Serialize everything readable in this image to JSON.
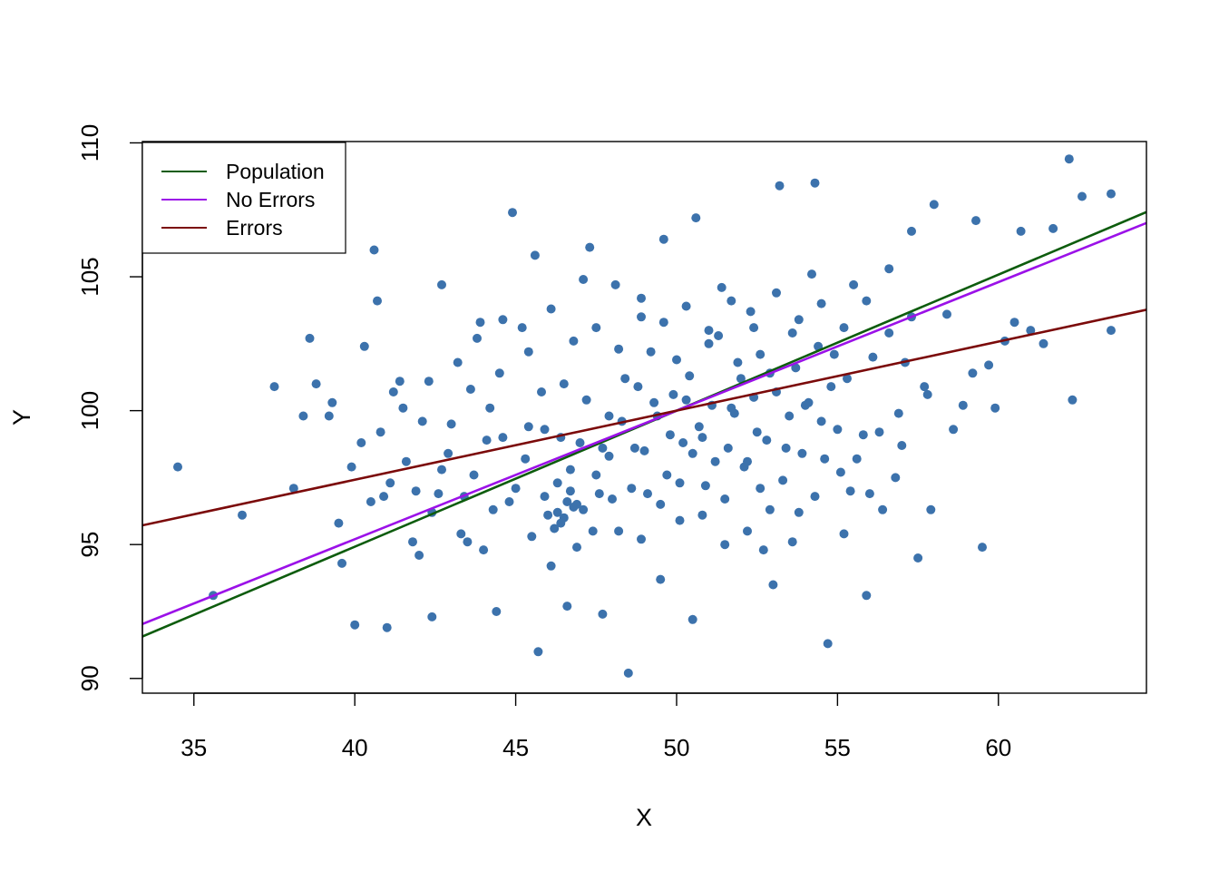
{
  "chart_data": {
    "type": "scatter",
    "xlabel": "X",
    "ylabel": "Y",
    "xlim": [
      33.4,
      64.6
    ],
    "ylim": [
      89.45,
      110.05
    ],
    "xticks": [
      35,
      40,
      45,
      50,
      55,
      60
    ],
    "yticks": [
      90,
      95,
      100,
      105,
      110
    ],
    "grid": false,
    "legend_position": "top-left",
    "point_color": "#3c72ac",
    "points": [
      [
        34.5,
        97.9
      ],
      [
        35.6,
        93.1
      ],
      [
        36.5,
        96.1
      ],
      [
        37.5,
        100.9
      ],
      [
        38.1,
        97.1
      ],
      [
        38.4,
        99.8
      ],
      [
        38.6,
        102.7
      ],
      [
        38.8,
        101.0
      ],
      [
        39.2,
        99.8
      ],
      [
        39.3,
        100.3
      ],
      [
        39.5,
        95.8
      ],
      [
        39.6,
        94.3
      ],
      [
        39.9,
        97.9
      ],
      [
        40.0,
        92.0
      ],
      [
        40.2,
        98.8
      ],
      [
        40.3,
        102.4
      ],
      [
        40.5,
        96.6
      ],
      [
        40.6,
        106.0
      ],
      [
        40.7,
        104.1
      ],
      [
        40.9,
        96.8
      ],
      [
        41.0,
        91.9
      ],
      [
        41.2,
        100.7
      ],
      [
        41.4,
        101.1
      ],
      [
        41.8,
        95.1
      ],
      [
        42.0,
        94.6
      ],
      [
        42.3,
        101.1
      ],
      [
        42.4,
        92.3
      ],
      [
        42.6,
        96.9
      ],
      [
        42.7,
        104.7
      ],
      [
        43.0,
        99.5
      ],
      [
        43.3,
        95.4
      ],
      [
        43.6,
        100.8
      ],
      [
        43.9,
        103.3
      ],
      [
        44.0,
        94.8
      ],
      [
        44.2,
        100.1
      ],
      [
        44.4,
        92.5
      ],
      [
        44.6,
        99.0
      ],
      [
        44.9,
        107.4
      ],
      [
        45.0,
        97.1
      ],
      [
        45.2,
        103.1
      ],
      [
        45.4,
        99.4
      ],
      [
        45.6,
        105.8
      ],
      [
        45.7,
        91.0
      ],
      [
        45.9,
        99.3
      ],
      [
        46.1,
        94.2
      ],
      [
        46.3,
        97.3
      ],
      [
        46.5,
        101.0
      ],
      [
        46.6,
        92.7
      ],
      [
        46.8,
        96.4
      ],
      [
        47.0,
        98.8
      ],
      [
        47.1,
        104.9
      ],
      [
        47.3,
        106.1
      ],
      [
        47.5,
        97.6
      ],
      [
        47.7,
        92.4
      ],
      [
        47.9,
        99.8
      ],
      [
        48.1,
        104.7
      ],
      [
        48.2,
        95.5
      ],
      [
        48.4,
        101.2
      ],
      [
        48.5,
        90.2
      ],
      [
        48.7,
        98.6
      ],
      [
        48.9,
        103.5
      ],
      [
        49.1,
        96.9
      ],
      [
        49.3,
        100.3
      ],
      [
        49.5,
        93.7
      ],
      [
        49.6,
        106.4
      ],
      [
        49.8,
        99.1
      ],
      [
        50.0,
        101.9
      ],
      [
        50.1,
        97.3
      ],
      [
        50.3,
        100.4
      ],
      [
        50.5,
        92.2
      ],
      [
        50.6,
        107.2
      ],
      [
        50.8,
        99.0
      ],
      [
        51.0,
        102.5
      ],
      [
        51.2,
        98.1
      ],
      [
        51.4,
        104.6
      ],
      [
        51.5,
        95.0
      ],
      [
        51.7,
        100.1
      ],
      [
        51.9,
        101.8
      ],
      [
        52.1,
        97.9
      ],
      [
        52.3,
        103.7
      ],
      [
        52.5,
        99.2
      ],
      [
        52.7,
        94.8
      ],
      [
        52.9,
        101.4
      ],
      [
        53.0,
        93.5
      ],
      [
        53.2,
        108.4
      ],
      [
        53.4,
        98.6
      ],
      [
        53.6,
        102.9
      ],
      [
        53.8,
        96.2
      ],
      [
        54.0,
        100.2
      ],
      [
        54.2,
        105.1
      ],
      [
        54.3,
        108.5
      ],
      [
        54.5,
        99.6
      ],
      [
        54.7,
        91.3
      ],
      [
        54.9,
        102.1
      ],
      [
        55.1,
        97.7
      ],
      [
        55.3,
        101.2
      ],
      [
        55.5,
        104.7
      ],
      [
        55.8,
        99.1
      ],
      [
        55.9,
        93.1
      ],
      [
        56.1,
        102.0
      ],
      [
        56.4,
        96.3
      ],
      [
        56.6,
        105.3
      ],
      [
        56.9,
        99.9
      ],
      [
        57.1,
        101.8
      ],
      [
        57.3,
        106.7
      ],
      [
        57.5,
        94.5
      ],
      [
        57.7,
        100.9
      ],
      [
        57.9,
        96.3
      ],
      [
        58.0,
        107.7
      ],
      [
        58.4,
        103.6
      ],
      [
        58.9,
        100.2
      ],
      [
        59.3,
        107.1
      ],
      [
        59.5,
        94.9
      ],
      [
        59.7,
        101.7
      ],
      [
        60.2,
        102.6
      ],
      [
        60.5,
        103.3
      ],
      [
        60.7,
        106.7
      ],
      [
        61.0,
        103.0
      ],
      [
        61.4,
        102.5
      ],
      [
        61.7,
        106.8
      ],
      [
        62.2,
        109.4
      ],
      [
        62.3,
        100.4
      ],
      [
        62.6,
        108.0
      ],
      [
        63.5,
        108.1
      ],
      [
        63.5,
        103.0
      ],
      [
        41.6,
        98.1
      ],
      [
        42.1,
        99.6
      ],
      [
        42.9,
        98.4
      ],
      [
        43.2,
        101.8
      ],
      [
        43.7,
        97.6
      ],
      [
        44.1,
        98.9
      ],
      [
        44.5,
        101.4
      ],
      [
        44.8,
        96.6
      ],
      [
        45.3,
        98.2
      ],
      [
        45.8,
        100.7
      ],
      [
        46.0,
        96.1
      ],
      [
        46.4,
        99.0
      ],
      [
        46.7,
        97.8
      ],
      [
        47.2,
        100.4
      ],
      [
        47.6,
        96.9
      ],
      [
        47.9,
        98.3
      ],
      [
        48.3,
        99.6
      ],
      [
        48.6,
        97.1
      ],
      [
        48.8,
        100.9
      ],
      [
        49.0,
        98.5
      ],
      [
        49.2,
        102.2
      ],
      [
        49.4,
        99.8
      ],
      [
        49.7,
        97.6
      ],
      [
        49.9,
        100.6
      ],
      [
        50.2,
        98.8
      ],
      [
        50.4,
        101.3
      ],
      [
        50.7,
        99.4
      ],
      [
        50.9,
        97.2
      ],
      [
        51.1,
        100.2
      ],
      [
        51.3,
        102.8
      ],
      [
        51.6,
        98.6
      ],
      [
        51.8,
        99.9
      ],
      [
        52.0,
        101.2
      ],
      [
        52.2,
        98.1
      ],
      [
        52.4,
        100.5
      ],
      [
        52.6,
        102.1
      ],
      [
        52.8,
        98.9
      ],
      [
        53.1,
        100.7
      ],
      [
        53.3,
        97.4
      ],
      [
        53.5,
        99.8
      ],
      [
        53.7,
        101.6
      ],
      [
        53.9,
        98.4
      ],
      [
        54.1,
        100.3
      ],
      [
        54.4,
        102.4
      ],
      [
        54.6,
        98.2
      ],
      [
        54.8,
        100.9
      ],
      [
        55.0,
        99.3
      ],
      [
        55.4,
        97.0
      ],
      [
        42.4,
        96.2
      ],
      [
        43.5,
        95.1
      ],
      [
        44.3,
        96.3
      ],
      [
        45.5,
        95.3
      ],
      [
        46.2,
        95.6
      ],
      [
        46.9,
        94.9
      ],
      [
        47.4,
        95.5
      ],
      [
        48.0,
        96.7
      ],
      [
        48.9,
        95.2
      ],
      [
        49.5,
        96.5
      ],
      [
        50.1,
        95.9
      ],
      [
        50.8,
        96.1
      ],
      [
        51.5,
        96.7
      ],
      [
        52.2,
        95.5
      ],
      [
        52.9,
        96.3
      ],
      [
        53.6,
        95.1
      ],
      [
        54.3,
        96.8
      ],
      [
        55.2,
        95.4
      ],
      [
        56.0,
        96.9
      ],
      [
        56.8,
        97.5
      ],
      [
        43.8,
        102.7
      ],
      [
        44.6,
        103.4
      ],
      [
        45.4,
        102.2
      ],
      [
        46.1,
        103.8
      ],
      [
        46.8,
        102.6
      ],
      [
        47.5,
        103.1
      ],
      [
        48.2,
        102.3
      ],
      [
        48.9,
        104.2
      ],
      [
        49.6,
        103.3
      ],
      [
        50.3,
        103.9
      ],
      [
        51.0,
        103.0
      ],
      [
        51.7,
        104.1
      ],
      [
        52.4,
        103.1
      ],
      [
        53.1,
        104.4
      ],
      [
        53.8,
        103.4
      ],
      [
        54.5,
        104.0
      ],
      [
        55.2,
        103.1
      ],
      [
        55.9,
        104.1
      ],
      [
        56.6,
        102.9
      ],
      [
        57.3,
        103.5
      ],
      [
        41.1,
        97.3
      ],
      [
        41.9,
        97.0
      ],
      [
        42.7,
        97.8
      ],
      [
        43.4,
        96.8
      ],
      [
        47.7,
        98.6
      ],
      [
        50.5,
        98.4
      ],
      [
        52.6,
        97.1
      ],
      [
        55.6,
        98.2
      ],
      [
        56.3,
        99.2
      ],
      [
        57.0,
        98.7
      ],
      [
        57.8,
        100.6
      ],
      [
        58.6,
        99.3
      ],
      [
        59.2,
        101.4
      ],
      [
        59.9,
        100.1
      ],
      [
        40.8,
        99.2
      ],
      [
        41.5,
        100.1
      ],
      [
        46.5,
        96.0
      ],
      [
        46.6,
        96.6
      ],
      [
        46.3,
        96.2
      ],
      [
        45.9,
        96.8
      ],
      [
        46.9,
        96.5
      ],
      [
        47.1,
        96.3
      ],
      [
        46.4,
        95.8
      ],
      [
        46.7,
        97.0
      ]
    ],
    "series": [
      {
        "name": "Population",
        "color": "#0d5c0d",
        "intercept": 74.6,
        "slope": 0.508
      },
      {
        "name": "No Errors",
        "color": "#9b11e8",
        "intercept": 76.0,
        "slope": 0.48
      },
      {
        "name": "Errors",
        "color": "#7b0a0a",
        "intercept": 87.1,
        "slope": 0.258
      }
    ]
  }
}
